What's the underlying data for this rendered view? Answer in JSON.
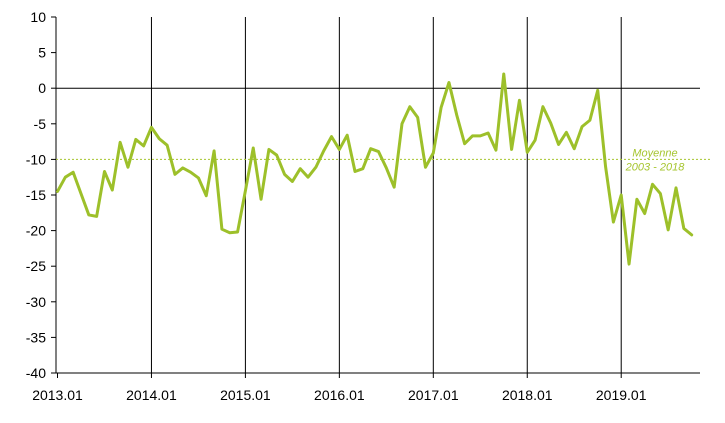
{
  "chart_data": {
    "type": "line",
    "title": "",
    "xlabel": "",
    "ylabel": "",
    "ylim": [
      -40,
      10
    ],
    "yticks": [
      10,
      5,
      0,
      -5,
      -10,
      -15,
      -20,
      -25,
      -30,
      -35,
      -40
    ],
    "xlim": [
      0,
      82
    ],
    "xticks": [
      {
        "x": 0,
        "label": "2013.01"
      },
      {
        "x": 12,
        "label": "2014.01"
      },
      {
        "x": 24,
        "label": "2015.01"
      },
      {
        "x": 36,
        "label": "2016.01"
      },
      {
        "x": 48,
        "label": "2017.01"
      },
      {
        "x": 60,
        "label": "2018.01"
      },
      {
        "x": 72,
        "label": "2019.01"
      }
    ],
    "grid": {
      "vertical": true,
      "horizontal": false
    },
    "reference_line": {
      "value": -10,
      "label_line1": "Moyenne",
      "label_line2": "2003 - 2018",
      "color": "#a6c52f"
    },
    "series": [
      {
        "color": "#9dc02a",
        "values": [
          -14.5,
          -12.5,
          -11.8,
          -14.8,
          -17.8,
          -18.0,
          -11.7,
          -14.3,
          -7.6,
          -11.1,
          -7.2,
          -8.1,
          -5.5,
          -7.1,
          -8.0,
          -12.1,
          -11.2,
          -11.8,
          -12.6,
          -15.1,
          -8.8,
          -19.8,
          -20.3,
          -20.2,
          -14.4,
          -8.4,
          -15.6,
          -8.6,
          -9.4,
          -12.1,
          -13.1,
          -11.3,
          -12.5,
          -11.1,
          -8.8,
          -6.8,
          -8.6,
          -6.6,
          -11.7,
          -11.3,
          -8.5,
          -8.9,
          -11.2,
          -13.9,
          -5.0,
          -2.6,
          -4.1,
          -11.1,
          -9.1,
          -2.7,
          0.8,
          -3.8,
          -7.8,
          -6.7,
          -6.7,
          -6.3,
          -8.7,
          2.0,
          -8.6,
          -1.7,
          -9.0,
          -7.3,
          -2.6,
          -4.9,
          -7.9,
          -6.2,
          -8.5,
          -5.4,
          -4.5,
          -0.3,
          -11.0,
          -18.8,
          -15.0,
          -24.7,
          -15.6,
          -17.6,
          -13.5,
          -14.8,
          -19.9,
          -14.0,
          -19.7,
          -20.6
        ]
      }
    ]
  }
}
